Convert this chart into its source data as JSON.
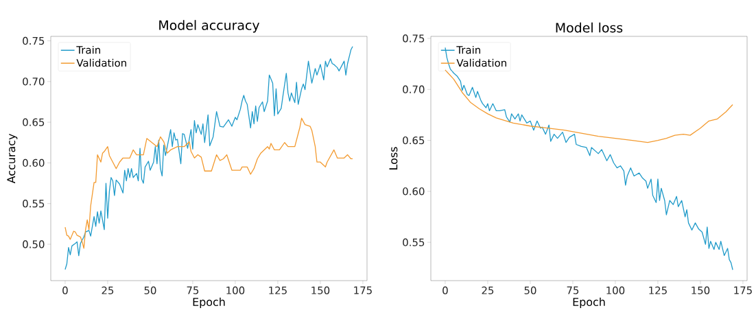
{
  "chart_data": [
    {
      "type": "line",
      "title": "Model accuracy",
      "xlabel": "Epoch",
      "ylabel": "Accuracy",
      "legend": "top left",
      "xlim": [
        -8.45,
        177.45
      ],
      "ylim": [
        0.4553,
        0.7555
      ],
      "xticks": [
        0,
        25,
        50,
        75,
        100,
        125,
        150,
        175
      ],
      "yticks": [
        {
          "value": 0.5,
          "label": "0.50"
        },
        {
          "value": 0.55,
          "label": "0.55"
        },
        {
          "value": 0.6,
          "label": "0.60"
        },
        {
          "value": 0.65,
          "label": "0.65"
        },
        {
          "value": 0.7,
          "label": "0.70"
        },
        {
          "value": 0.75,
          "label": "0.75"
        }
      ],
      "series": [
        {
          "name": "Train",
          "color": "#1f9ac9",
          "x": [
            0,
            1,
            2,
            3,
            4,
            6,
            7,
            8,
            9,
            11,
            12,
            14,
            15,
            17,
            18,
            19,
            20,
            21,
            23,
            24,
            25,
            26,
            27,
            28,
            29,
            30,
            32,
            34,
            35,
            36,
            37,
            38,
            39,
            40,
            42,
            43,
            44,
            45,
            46,
            47,
            49,
            50,
            52,
            53,
            54,
            55,
            56,
            57,
            58,
            59,
            62,
            63,
            64,
            65,
            66,
            68,
            69,
            70,
            72,
            74,
            75,
            76,
            77,
            78,
            80,
            81,
            82,
            84,
            85,
            87,
            89,
            91,
            93,
            96,
            98,
            100,
            101,
            103,
            104,
            105,
            106,
            107,
            109,
            110,
            111,
            112,
            113,
            114,
            116,
            117,
            119,
            120,
            122,
            123,
            124,
            125,
            127,
            128,
            130,
            131,
            132,
            133,
            135,
            136,
            137,
            139,
            140,
            141,
            143,
            145,
            147,
            148,
            149,
            150,
            152,
            153,
            154,
            156,
            157,
            158,
            160,
            161,
            162,
            164,
            165,
            166,
            168,
            169
          ],
          "values": [
            0.469,
            0.476,
            0.496,
            0.487,
            0.498,
            0.501,
            0.503,
            0.486,
            0.501,
            0.509,
            0.515,
            0.517,
            0.51,
            0.534,
            0.522,
            0.54,
            0.526,
            0.541,
            0.518,
            0.575,
            0.532,
            0.565,
            0.582,
            0.578,
            0.56,
            0.579,
            0.574,
            0.563,
            0.591,
            0.578,
            0.593,
            0.582,
            0.593,
            0.582,
            0.587,
            0.578,
            0.618,
            0.58,
            0.575,
            0.595,
            0.602,
            0.591,
            0.601,
            0.62,
            0.599,
            0.628,
            0.593,
            0.584,
            0.622,
            0.609,
            0.641,
            0.62,
            0.637,
            0.628,
            0.629,
            0.599,
            0.636,
            0.635,
            0.618,
            0.641,
            0.617,
            0.652,
            0.637,
            0.647,
            0.635,
            0.648,
            0.625,
            0.659,
            0.621,
            0.632,
            0.663,
            0.645,
            0.644,
            0.653,
            0.645,
            0.656,
            0.653,
            0.666,
            0.676,
            0.683,
            0.676,
            0.672,
            0.643,
            0.663,
            0.648,
            0.67,
            0.651,
            0.668,
            0.675,
            0.663,
            0.676,
            0.708,
            0.698,
            0.658,
            0.691,
            0.66,
            0.667,
            0.682,
            0.71,
            0.686,
            0.676,
            0.686,
            0.674,
            0.699,
            0.672,
            0.691,
            0.697,
            0.69,
            0.725,
            0.698,
            0.716,
            0.708,
            0.714,
            0.721,
            0.702,
            0.725,
            0.718,
            0.728,
            0.722,
            0.721,
            0.717,
            0.713,
            0.717,
            0.725,
            0.708,
            0.722,
            0.739,
            0.743
          ]
        },
        {
          "name": "Validation",
          "color": "#f39a2f",
          "x": [
            0,
            1,
            2,
            3,
            4,
            5,
            6,
            7,
            9,
            10,
            11,
            12,
            13,
            14,
            15,
            17,
            18,
            19,
            21,
            22,
            23,
            25,
            26,
            28,
            30,
            32,
            34,
            36,
            38,
            40,
            42,
            46,
            48,
            51,
            54,
            56,
            58,
            60,
            62,
            66,
            70,
            73,
            74,
            76,
            78,
            80,
            82,
            86,
            89,
            91,
            93,
            95,
            98,
            103,
            104,
            107,
            109,
            111,
            113,
            115,
            119,
            120,
            121,
            123,
            126,
            129,
            131,
            135,
            138,
            139,
            141,
            144,
            145,
            147,
            148,
            150,
            153,
            154,
            158,
            160,
            164,
            166,
            168,
            169
          ],
          "values": [
            0.521,
            0.511,
            0.51,
            0.506,
            0.511,
            0.516,
            0.515,
            0.511,
            0.509,
            0.503,
            0.495,
            0.518,
            0.53,
            0.518,
            0.547,
            0.576,
            0.576,
            0.61,
            0.601,
            0.612,
            0.614,
            0.62,
            0.609,
            0.601,
            0.593,
            0.601,
            0.606,
            0.606,
            0.606,
            0.616,
            0.61,
            0.61,
            0.63,
            0.625,
            0.62,
            0.632,
            0.626,
            0.612,
            0.616,
            0.62,
            0.62,
            0.626,
            0.614,
            0.606,
            0.61,
            0.607,
            0.59,
            0.59,
            0.61,
            0.603,
            0.605,
            0.61,
            0.591,
            0.591,
            0.595,
            0.595,
            0.586,
            0.593,
            0.605,
            0.612,
            0.62,
            0.617,
            0.624,
            0.616,
            0.616,
            0.625,
            0.62,
            0.62,
            0.644,
            0.655,
            0.647,
            0.645,
            0.64,
            0.62,
            0.601,
            0.601,
            0.595,
            0.601,
            0.616,
            0.606,
            0.606,
            0.61,
            0.605,
            0.605
          ]
        }
      ]
    },
    {
      "type": "line",
      "title": "Model loss",
      "xlabel": "Epoch",
      "ylabel": "Loss",
      "legend": "top left",
      "xlim": [
        -8.45,
        177.45
      ],
      "ylim": [
        0.5124,
        0.752
      ],
      "xticks": [
        0,
        25,
        50,
        75,
        100,
        125,
        150,
        175
      ],
      "yticks": [
        {
          "value": 0.55,
          "label": "0.55"
        },
        {
          "value": 0.6,
          "label": "0.60"
        },
        {
          "value": 0.65,
          "label": "0.65"
        },
        {
          "value": 0.7,
          "label": "0.70"
        },
        {
          "value": 0.75,
          "label": "0.75"
        }
      ],
      "series": [
        {
          "name": "Train",
          "color": "#1f9ac9",
          "x": [
            0,
            1,
            2,
            3,
            5,
            7,
            9,
            10,
            11,
            13,
            14,
            16,
            18,
            19,
            21,
            22,
            24,
            25,
            26,
            28,
            30,
            32,
            35,
            36,
            38,
            39,
            41,
            43,
            44,
            45,
            48,
            50,
            52,
            54,
            56,
            57,
            59,
            61,
            62,
            64,
            66,
            69,
            71,
            73,
            76,
            77,
            80,
            83,
            85,
            86,
            90,
            92,
            95,
            97,
            99,
            101,
            103,
            105,
            106,
            107,
            109,
            111,
            114,
            116,
            118,
            119,
            121,
            122,
            124,
            125,
            126,
            127,
            129,
            130,
            132,
            134,
            136,
            137,
            139,
            141,
            142,
            143,
            145,
            147,
            149,
            151,
            153,
            154,
            155,
            156,
            158,
            159,
            161,
            162,
            164,
            166,
            167,
            168,
            169
          ],
          "values": [
            0.741,
            0.731,
            0.725,
            0.72,
            0.716,
            0.713,
            0.708,
            0.699,
            0.704,
            0.695,
            0.694,
            0.702,
            0.692,
            0.698,
            0.689,
            0.686,
            0.682,
            0.686,
            0.679,
            0.686,
            0.679,
            0.679,
            0.68,
            0.673,
            0.668,
            0.676,
            0.671,
            0.676,
            0.669,
            0.675,
            0.667,
            0.669,
            0.66,
            0.669,
            0.662,
            0.663,
            0.656,
            0.665,
            0.649,
            0.656,
            0.652,
            0.658,
            0.648,
            0.653,
            0.656,
            0.646,
            0.644,
            0.643,
            0.635,
            0.643,
            0.637,
            0.641,
            0.63,
            0.636,
            0.628,
            0.623,
            0.625,
            0.62,
            0.606,
            0.615,
            0.623,
            0.615,
            0.618,
            0.613,
            0.61,
            0.603,
            0.612,
            0.596,
            0.589,
            0.612,
            0.591,
            0.603,
            0.591,
            0.577,
            0.591,
            0.587,
            0.595,
            0.585,
            0.591,
            0.575,
            0.582,
            0.569,
            0.562,
            0.569,
            0.563,
            0.56,
            0.548,
            0.565,
            0.544,
            0.551,
            0.543,
            0.55,
            0.543,
            0.551,
            0.537,
            0.544,
            0.533,
            0.53,
            0.523
          ]
        },
        {
          "name": "Validation",
          "color": "#f39a2f",
          "x": [
            0,
            5,
            10,
            15,
            20,
            25,
            30,
            40,
            50,
            60,
            70,
            80,
            90,
            100,
            110,
            119,
            125,
            130,
            135,
            140,
            144,
            150,
            155,
            160,
            165,
            169
          ],
          "values": [
            0.719,
            0.71,
            0.697,
            0.687,
            0.681,
            0.676,
            0.672,
            0.667,
            0.664,
            0.662,
            0.66,
            0.657,
            0.654,
            0.652,
            0.65,
            0.648,
            0.65,
            0.652,
            0.655,
            0.656,
            0.655,
            0.662,
            0.669,
            0.671,
            0.678,
            0.685
          ]
        }
      ]
    }
  ]
}
